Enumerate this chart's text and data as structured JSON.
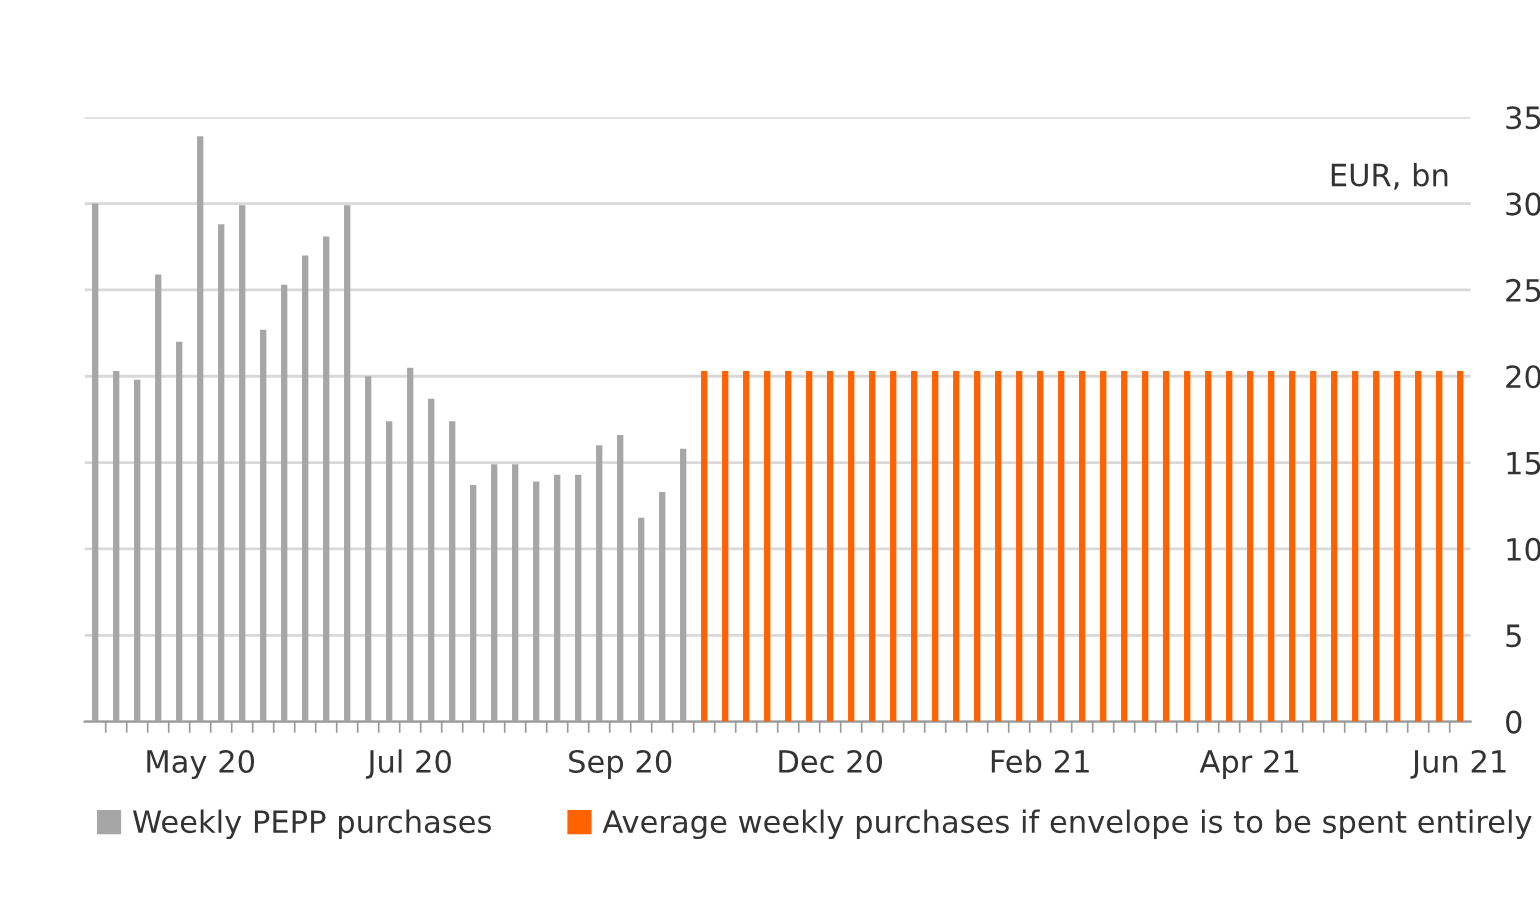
{
  "chart_data": {
    "type": "bar",
    "ylabel": "EUR, bn",
    "categories": [
      null,
      null,
      null,
      null,
      null,
      "May 20",
      null,
      null,
      null,
      null,
      null,
      null,
      null,
      null,
      null,
      "Jul 20",
      null,
      null,
      null,
      null,
      null,
      null,
      null,
      null,
      null,
      "Sep 20",
      null,
      null,
      null,
      null,
      null,
      null,
      null,
      null,
      null,
      "Dec 20",
      null,
      null,
      null,
      null,
      null,
      null,
      null,
      null,
      null,
      "Feb 21",
      null,
      null,
      null,
      null,
      null,
      null,
      null,
      null,
      null,
      "Apr 21",
      null,
      null,
      null,
      null,
      null,
      null,
      null,
      null,
      null,
      "Jun 21"
    ],
    "series": [
      {
        "name": "Weekly PEPP purchases",
        "color": "#a6a6a6",
        "values": [
          30,
          20.3,
          19.8,
          25.9,
          22,
          33.9,
          28.8,
          29.9,
          22.7,
          25.3,
          27,
          28.1,
          29.9,
          20,
          17.4,
          20.5,
          18.7,
          17.4,
          13.7,
          14.9,
          14.9,
          13.9,
          14.3,
          14.3,
          16,
          16.6,
          11.8,
          13.3,
          15.8,
          null,
          null,
          null,
          null,
          null,
          null,
          null,
          null,
          null,
          null,
          null,
          null,
          null,
          null,
          null,
          null,
          null,
          null,
          null,
          null,
          null,
          null,
          null,
          null,
          null,
          null,
          null,
          null,
          null,
          null,
          null,
          null,
          null,
          null,
          null,
          null,
          null
        ]
      },
      {
        "name": "Average weekly purchases if envelope is to be spent entirely",
        "color": "#ff6200",
        "values": [
          null,
          null,
          null,
          null,
          null,
          null,
          null,
          null,
          null,
          null,
          null,
          null,
          null,
          null,
          null,
          null,
          null,
          null,
          null,
          null,
          null,
          null,
          null,
          null,
          null,
          null,
          null,
          null,
          null,
          20.3,
          20.3,
          20.3,
          20.3,
          20.3,
          20.3,
          20.3,
          20.3,
          20.3,
          20.3,
          20.3,
          20.3,
          20.3,
          20.3,
          20.3,
          20.3,
          20.3,
          20.3,
          20.3,
          20.3,
          20.3,
          20.3,
          20.3,
          20.3,
          20.3,
          20.3,
          20.3,
          20.3,
          20.3,
          20.3,
          20.3,
          20.3,
          20.3,
          20.3,
          20.3,
          20.3,
          20.3
        ]
      }
    ],
    "ylim": [
      0,
      35
    ],
    "yticks": [
      0,
      5,
      10,
      15,
      20,
      25,
      30,
      35
    ],
    "grid": "y",
    "legend": "bottom"
  }
}
